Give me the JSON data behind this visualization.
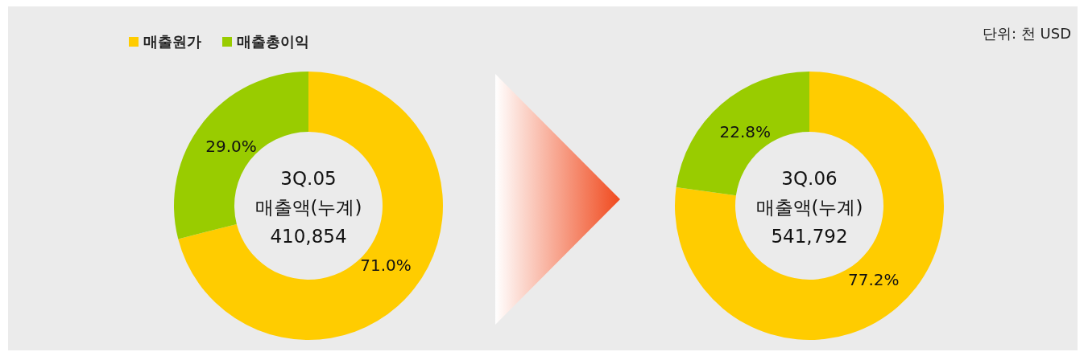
{
  "chart_data": [
    {
      "type": "donut",
      "title": "3Q.05",
      "subtitle": "매출액(누계)",
      "annotations": [
        "410,854"
      ],
      "legend": "top left",
      "categories": [
        "매출원가",
        "매출총이익"
      ],
      "values": [
        71.0,
        29.0
      ],
      "colors": [
        "#ffcc00",
        "#99cc00"
      ],
      "value_labels": [
        "71.0%",
        "29.0%"
      ]
    },
    {
      "type": "donut",
      "title": "3Q.06",
      "subtitle": "매출액(누계)",
      "annotations": [
        "541,792",
        "단위: 천 USD"
      ],
      "categories": [
        null,
        null
      ],
      "values": [
        77.2,
        22.8
      ],
      "colors": [
        "#ffcc00",
        "#99cc00"
      ],
      "value_labels": [
        "77.2%",
        "22.8%"
      ]
    }
  ]
}
